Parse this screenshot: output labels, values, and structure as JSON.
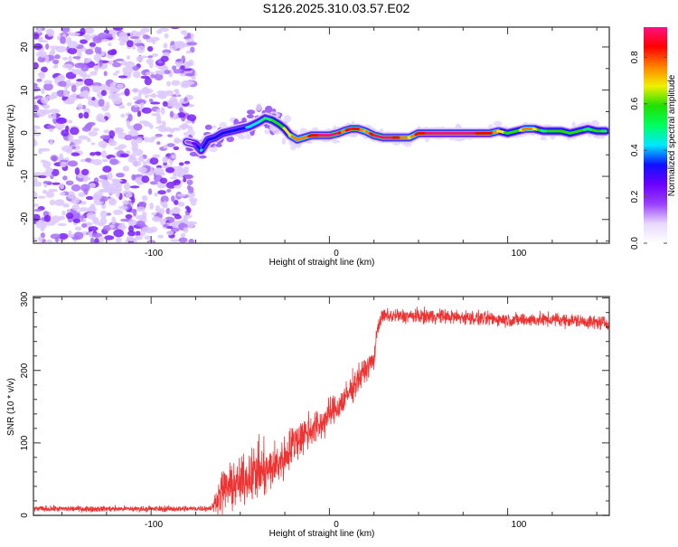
{
  "chart_data": [
    {
      "type": "heatmap",
      "title": "S126.2025.310.03.57.E02",
      "xlabel": "Height of straight line (km)",
      "ylabel": "Frequency (Hz)",
      "xlim": [
        -166,
        157
      ],
      "ylim": [
        -25.5,
        24.6
      ],
      "xticks": [
        -100,
        0,
        100
      ],
      "xtick_labels": [
        "-100",
        "0",
        "100"
      ],
      "yticks": [
        20,
        10,
        0,
        -10,
        -20
      ],
      "ytick_labels": [
        "20",
        "10",
        "0",
        "-10",
        "-20"
      ],
      "noise_region_x": [
        -166,
        -80
      ],
      "ridge": {
        "x": [
          -80,
          -75,
          -72,
          -68,
          -64,
          -60,
          -55,
          -50,
          -45,
          -40,
          -36,
          -32,
          -28,
          -25,
          -22,
          -18,
          -14,
          -10,
          -5,
          0,
          5,
          8,
          12,
          16,
          20,
          25,
          30,
          35,
          40,
          45,
          50,
          55,
          60,
          70,
          80,
          90,
          95,
          100,
          105,
          110,
          115,
          120,
          125,
          130,
          135,
          140,
          145,
          150,
          155
        ],
        "frequency": [
          -2,
          -2.5,
          -4,
          -1.5,
          -1,
          0,
          0.5,
          1,
          1.5,
          2.5,
          3.5,
          3,
          2,
          1,
          -0.5,
          -1.5,
          -1,
          -0.5,
          -0.5,
          -0.5,
          0,
          0.5,
          1,
          1,
          0.5,
          -0.5,
          -1,
          -1,
          -1,
          -1,
          0,
          0,
          0,
          0,
          0,
          0,
          0.5,
          0,
          0.5,
          1,
          1,
          0.5,
          0.5,
          0.5,
          0,
          0.5,
          1,
          0.5,
          0.5
        ],
        "amplitude": [
          0.15,
          0.25,
          0.4,
          0.3,
          0.3,
          0.35,
          0.3,
          0.35,
          0.4,
          0.45,
          0.5,
          0.55,
          0.6,
          0.65,
          0.7,
          0.8,
          0.75,
          0.85,
          0.9,
          0.9,
          0.9,
          0.75,
          0.9,
          0.85,
          0.7,
          0.9,
          0.9,
          0.9,
          0.8,
          0.7,
          0.85,
          0.9,
          0.9,
          0.9,
          0.9,
          0.85,
          0.7,
          0.6,
          0.55,
          0.8,
          0.7,
          0.5,
          0.6,
          0.55,
          0.6,
          0.6,
          0.5,
          0.6,
          0.5
        ]
      },
      "colorbar": {
        "label": "Normalized spectral amplitude",
        "range": [
          0,
          0.93
        ],
        "ticks": [
          0.0,
          0.2,
          0.4,
          0.6,
          0.8
        ],
        "tick_labels": [
          "0.0",
          "0.2",
          "0.4",
          "0.6",
          "0.8"
        ],
        "colors": [
          "#ffffff",
          "#e8d8ff",
          "#9a40ff",
          "#6a00ff",
          "#1010ff",
          "#00e8ff",
          "#00ff60",
          "#20e000",
          "#f0f000",
          "#ff8000",
          "#ff0000",
          "#ff1080"
        ]
      }
    },
    {
      "type": "line",
      "xlabel": "Height of straight line (km)",
      "ylabel": "SNR (10 * v/v)",
      "xlim": [
        -166,
        157
      ],
      "ylim": [
        0,
        302
      ],
      "xticks": [
        -100,
        0,
        100
      ],
      "xtick_labels": [
        "-100",
        "0",
        "100"
      ],
      "yticks": [
        0,
        100,
        200,
        300
      ],
      "ytick_labels": [
        "0",
        "100",
        "200",
        "300"
      ],
      "line_color": "#ee3333",
      "envelope": {
        "x": [
          -166,
          -120,
          -80,
          -66,
          -60,
          -55,
          -50,
          -45,
          -40,
          -35,
          -30,
          -25,
          -20,
          -15,
          -10,
          -5,
          0,
          5,
          10,
          15,
          20,
          25,
          27,
          30,
          60,
          100,
          130,
          157
        ],
        "mean": [
          9,
          9,
          9,
          10,
          35,
          40,
          45,
          55,
          60,
          60,
          70,
          80,
          100,
          110,
          120,
          125,
          140,
          150,
          165,
          185,
          200,
          215,
          260,
          275,
          275,
          270,
          270,
          265
        ],
        "spread": [
          6,
          6,
          6,
          6,
          45,
          45,
          45,
          50,
          60,
          50,
          45,
          45,
          40,
          40,
          40,
          35,
          30,
          30,
          30,
          30,
          25,
          20,
          15,
          15,
          15,
          14,
          14,
          14
        ]
      }
    }
  ]
}
